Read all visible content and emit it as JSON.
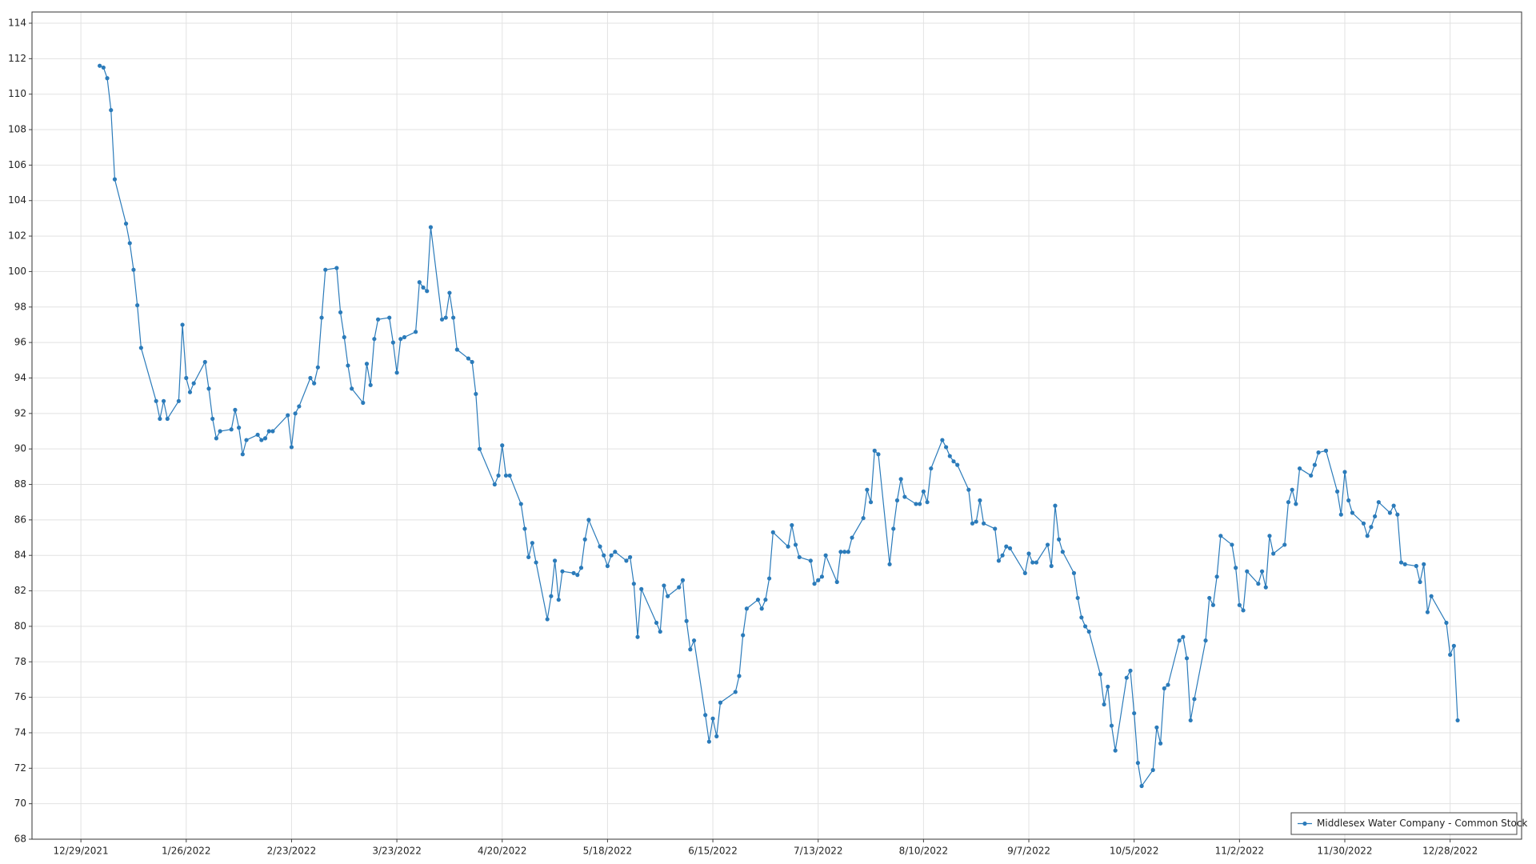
{
  "chart_data": {
    "type": "line",
    "x": [
      "1/3/2022",
      "1/4/2022",
      "1/5/2022",
      "1/6/2022",
      "1/7/2022",
      "1/10/2022",
      "1/11/2022",
      "1/12/2022",
      "1/13/2022",
      "1/14/2022",
      "1/18/2022",
      "1/19/2022",
      "1/20/2022",
      "1/21/2022",
      "1/24/2022",
      "1/25/2022",
      "1/26/2022",
      "1/27/2022",
      "1/28/2022",
      "1/31/2022",
      "2/1/2022",
      "2/2/2022",
      "2/3/2022",
      "2/4/2022",
      "2/7/2022",
      "2/8/2022",
      "2/9/2022",
      "2/10/2022",
      "2/11/2022",
      "2/14/2022",
      "2/15/2022",
      "2/16/2022",
      "2/17/2022",
      "2/18/2022",
      "2/22/2022",
      "2/23/2022",
      "2/24/2022",
      "2/25/2022",
      "2/28/2022",
      "3/1/2022",
      "3/2/2022",
      "3/3/2022",
      "3/4/2022",
      "3/7/2022",
      "3/8/2022",
      "3/9/2022",
      "3/10/2022",
      "3/11/2022",
      "3/14/2022",
      "3/15/2022",
      "3/16/2022",
      "3/17/2022",
      "3/18/2022",
      "3/21/2022",
      "3/22/2022",
      "3/23/2022",
      "3/24/2022",
      "3/25/2022",
      "3/28/2022",
      "3/29/2022",
      "3/30/2022",
      "3/31/2022",
      "4/1/2022",
      "4/4/2022",
      "4/5/2022",
      "4/6/2022",
      "4/7/2022",
      "4/8/2022",
      "4/11/2022",
      "4/12/2022",
      "4/13/2022",
      "4/14/2022",
      "4/18/2022",
      "4/19/2022",
      "4/20/2022",
      "4/21/2022",
      "4/22/2022",
      "4/25/2022",
      "4/26/2022",
      "4/27/2022",
      "4/28/2022",
      "4/29/2022",
      "5/2/2022",
      "5/3/2022",
      "5/4/2022",
      "5/5/2022",
      "5/6/2022",
      "5/9/2022",
      "5/10/2022",
      "5/11/2022",
      "5/12/2022",
      "5/13/2022",
      "5/16/2022",
      "5/17/2022",
      "5/18/2022",
      "5/19/2022",
      "5/20/2022",
      "5/23/2022",
      "5/24/2022",
      "5/25/2022",
      "5/26/2022",
      "5/27/2022",
      "5/31/2022",
      "6/1/2022",
      "6/2/2022",
      "6/3/2022",
      "6/6/2022",
      "6/7/2022",
      "6/8/2022",
      "6/9/2022",
      "6/10/2022",
      "6/13/2022",
      "6/14/2022",
      "6/15/2022",
      "6/16/2022",
      "6/17/2022",
      "6/21/2022",
      "6/22/2022",
      "6/23/2022",
      "6/24/2022",
      "6/27/2022",
      "6/28/2022",
      "6/29/2022",
      "6/30/2022",
      "7/1/2022",
      "7/5/2022",
      "7/6/2022",
      "7/7/2022",
      "7/8/2022",
      "7/11/2022",
      "7/12/2022",
      "7/13/2022",
      "7/14/2022",
      "7/15/2022",
      "7/18/2022",
      "7/19/2022",
      "7/20/2022",
      "7/21/2022",
      "7/22/2022",
      "7/25/2022",
      "7/26/2022",
      "7/27/2022",
      "7/28/2022",
      "7/29/2022",
      "8/1/2022",
      "8/2/2022",
      "8/3/2022",
      "8/4/2022",
      "8/5/2022",
      "8/8/2022",
      "8/9/2022",
      "8/10/2022",
      "8/11/2022",
      "8/12/2022",
      "8/15/2022",
      "8/16/2022",
      "8/17/2022",
      "8/18/2022",
      "8/19/2022",
      "8/22/2022",
      "8/23/2022",
      "8/24/2022",
      "8/25/2022",
      "8/26/2022",
      "8/29/2022",
      "8/30/2022",
      "8/31/2022",
      "9/1/2022",
      "9/2/2022",
      "9/6/2022",
      "9/7/2022",
      "9/8/2022",
      "9/9/2022",
      "9/12/2022",
      "9/13/2022",
      "9/14/2022",
      "9/15/2022",
      "9/16/2022",
      "9/19/2022",
      "9/20/2022",
      "9/21/2022",
      "9/22/2022",
      "9/23/2022",
      "9/26/2022",
      "9/27/2022",
      "9/28/2022",
      "9/29/2022",
      "9/30/2022",
      "10/3/2022",
      "10/4/2022",
      "10/5/2022",
      "10/6/2022",
      "10/7/2022",
      "10/10/2022",
      "10/11/2022",
      "10/12/2022",
      "10/13/2022",
      "10/14/2022",
      "10/17/2022",
      "10/18/2022",
      "10/19/2022",
      "10/20/2022",
      "10/21/2022",
      "10/24/2022",
      "10/25/2022",
      "10/26/2022",
      "10/27/2022",
      "10/28/2022",
      "10/31/2022",
      "11/1/2022",
      "11/2/2022",
      "11/3/2022",
      "11/4/2022",
      "11/7/2022",
      "11/8/2022",
      "11/9/2022",
      "11/10/2022",
      "11/11/2022",
      "11/14/2022",
      "11/15/2022",
      "11/16/2022",
      "11/17/2022",
      "11/18/2022",
      "11/21/2022",
      "11/22/2022",
      "11/23/2022",
      "11/25/2022",
      "11/28/2022",
      "11/29/2022",
      "11/30/2022",
      "12/1/2022",
      "12/2/2022",
      "12/5/2022",
      "12/6/2022",
      "12/7/2022",
      "12/8/2022",
      "12/9/2022",
      "12/12/2022",
      "12/13/2022",
      "12/14/2022",
      "12/15/2022",
      "12/16/2022",
      "12/19/2022",
      "12/20/2022",
      "12/21/2022",
      "12/22/2022",
      "12/23/2022",
      "12/27/2022",
      "12/28/2022",
      "12/29/2022",
      "12/30/2022"
    ],
    "series": [
      {
        "name": "Middlesex Water Company - Common Stock",
        "color": "#2b7bba",
        "values": [
          111.6,
          111.5,
          110.9,
          109.1,
          105.2,
          102.7,
          101.6,
          100.1,
          98.1,
          95.7,
          92.7,
          91.7,
          92.7,
          91.7,
          92.7,
          97.0,
          94.0,
          93.2,
          93.7,
          94.9,
          93.4,
          91.7,
          90.6,
          91.0,
          91.1,
          92.2,
          91.2,
          89.7,
          90.5,
          90.8,
          90.5,
          90.6,
          91.0,
          91.0,
          91.9,
          90.1,
          92.0,
          92.4,
          94.0,
          93.7,
          94.6,
          97.4,
          100.1,
          100.2,
          97.7,
          96.3,
          94.7,
          93.4,
          92.6,
          94.8,
          93.6,
          96.2,
          97.3,
          97.4,
          96.0,
          94.3,
          96.2,
          96.3,
          96.6,
          99.4,
          99.1,
          98.9,
          102.5,
          97.3,
          97.4,
          98.8,
          97.4,
          95.6,
          95.1,
          94.9,
          93.1,
          90.0,
          88.0,
          88.5,
          90.2,
          88.5,
          88.5,
          86.9,
          85.5,
          83.9,
          84.7,
          83.6,
          80.4,
          81.7,
          83.7,
          81.5,
          83.1,
          83.0,
          82.9,
          83.3,
          84.9,
          86.0,
          84.5,
          84.0,
          83.4,
          84.0,
          84.2,
          83.7,
          83.9,
          82.4,
          79.4,
          82.1,
          80.2,
          79.7,
          82.3,
          81.7,
          82.2,
          82.6,
          80.3,
          78.7,
          79.2,
          75.0,
          73.5,
          74.8,
          73.8,
          75.7,
          76.3,
          77.2,
          79.5,
          81.0,
          81.5,
          81.0,
          81.5,
          82.7,
          85.3,
          84.5,
          85.7,
          84.6,
          83.9,
          83.7,
          82.4,
          82.6,
          82.8,
          84.0,
          82.5,
          84.2,
          84.2,
          84.2,
          85.0,
          86.1,
          87.7,
          87.0,
          89.9,
          89.7,
          83.5,
          85.5,
          87.1,
          88.3,
          87.3,
          86.9,
          86.9,
          87.6,
          87.0,
          88.9,
          90.5,
          90.1,
          89.6,
          89.3,
          89.1,
          87.7,
          85.8,
          85.9,
          87.1,
          85.8,
          85.5,
          83.7,
          84.0,
          84.5,
          84.4,
          83.0,
          84.1,
          83.6,
          83.6,
          84.6,
          83.4,
          86.8,
          84.9,
          84.2,
          83.0,
          81.6,
          80.5,
          80.0,
          79.7,
          77.3,
          75.6,
          76.6,
          74.4,
          73.0,
          77.1,
          77.5,
          75.1,
          72.3,
          71.0,
          71.9,
          74.3,
          73.4,
          76.5,
          76.7,
          79.2,
          79.4,
          78.2,
          74.7,
          75.9,
          79.2,
          81.6,
          81.2,
          82.8,
          85.1,
          84.6,
          83.3,
          81.2,
          80.9,
          83.1,
          82.4,
          83.1,
          82.2,
          85.1,
          84.1,
          84.6,
          87.0,
          87.7,
          86.9,
          88.9,
          88.5,
          89.1,
          89.8,
          89.9,
          87.6,
          86.3,
          88.7,
          87.1,
          86.4,
          85.8,
          85.1,
          85.6,
          86.2,
          87.0,
          86.4,
          86.8,
          86.3,
          83.6,
          83.5,
          83.4,
          82.5,
          83.5,
          80.8,
          81.7,
          80.2,
          78.4,
          78.9,
          74.7
        ]
      }
    ],
    "xlim": [
      "12/16/2021",
      "1/16/2023"
    ],
    "xticks": [
      "12/29/2021",
      "1/26/2022",
      "2/23/2022",
      "3/23/2022",
      "4/20/2022",
      "5/18/2022",
      "6/15/2022",
      "7/13/2022",
      "8/10/2022",
      "9/7/2022",
      "10/5/2022",
      "11/2/2022",
      "11/30/2022",
      "12/28/2022"
    ],
    "ylim": [
      68,
      114
    ],
    "yticks": [
      68,
      70,
      72,
      74,
      76,
      78,
      80,
      82,
      84,
      86,
      88,
      90,
      92,
      94,
      96,
      98,
      100,
      102,
      104,
      106,
      108,
      110,
      112,
      114
    ],
    "grid": true,
    "legend": "bottom-right"
  }
}
